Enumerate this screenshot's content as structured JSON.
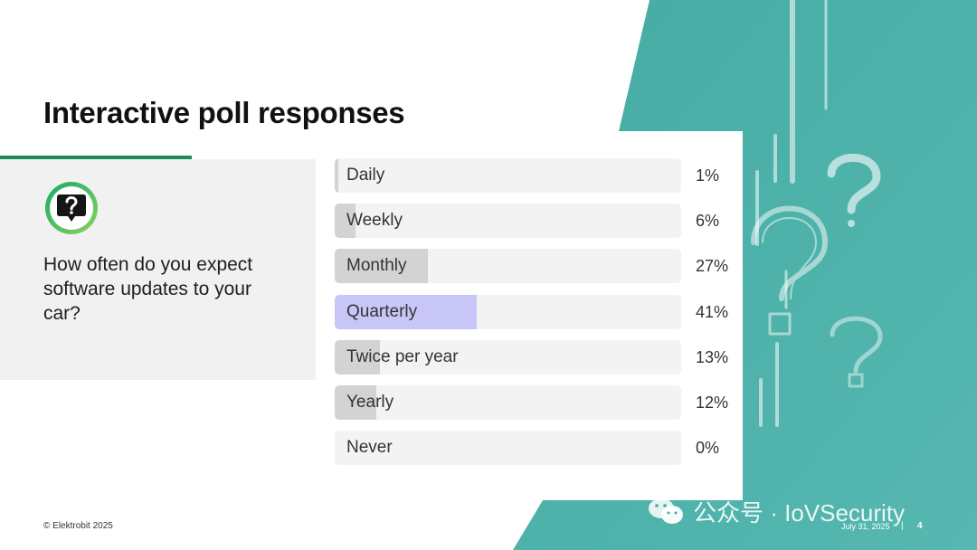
{
  "slide": {
    "title": "Interactive poll responses",
    "question": "How often do you expect software updates to your car?",
    "footer_left": "© Elektrobit 2025",
    "footer_date": "July 31, 2025",
    "footer_separator": "|",
    "page_number": "4",
    "watermark": "公众号 · IoVSecurity"
  },
  "colors": {
    "teal": "#45aba4",
    "accent_green": "#1f8a5a",
    "bar_fill": "#d3d3d3",
    "bar_highlight": "#c8c6f6",
    "bar_track": "#f3f3f3"
  },
  "icons": {
    "question_badge": "speech-bubble-question-icon",
    "watermark": "wechat-icon",
    "background": "question-mark-icon"
  },
  "chart_data": {
    "type": "bar",
    "orientation": "horizontal",
    "categories": [
      "Daily",
      "Weekly",
      "Monthly",
      "Quarterly",
      "Twice per year",
      "Yearly",
      "Never"
    ],
    "values": [
      1,
      6,
      27,
      41,
      13,
      12,
      0
    ],
    "value_labels": [
      "1%",
      "6%",
      "27%",
      "41%",
      "13%",
      "12%",
      "0%"
    ],
    "unit": "%",
    "xlim": [
      0,
      100
    ],
    "highlighted_category": "Quarterly",
    "grid": false,
    "legend": "none"
  }
}
